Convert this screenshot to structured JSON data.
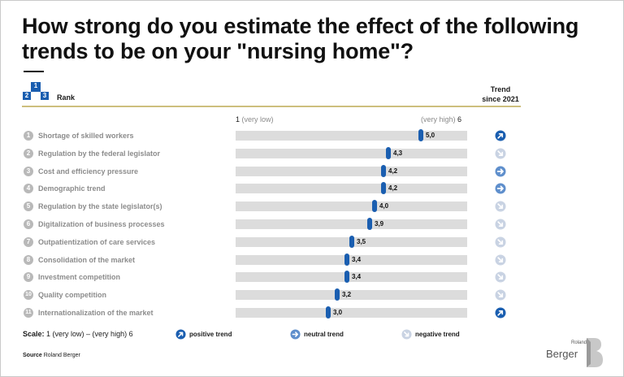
{
  "title": "How strong do you estimate the effect of the following trends to be on your \"nursing home\"?",
  "header": {
    "podium": [
      "1",
      "2",
      "3"
    ],
    "rank_label": "Rank",
    "trend_label_line1": "Trend",
    "trend_label_line2": "since 2021"
  },
  "axis": {
    "low_num": "1",
    "low_text": "(very low)",
    "high_text": "(very high)",
    "high_num": "6"
  },
  "chart_data": {
    "type": "dot-scale",
    "title": "How strong do you estimate the effect of the following trends to be on your \"nursing home\"?",
    "xlim": [
      1,
      6
    ],
    "categories": [
      "Shortage of skilled workers",
      "Regulation by the federal legislator",
      "Cost and efficiency pressure",
      "Demographic trend",
      "Regulation by the state legislator(s)",
      "Digitalization of business processes",
      "Outpatientization of care services",
      "Consolidation of the market",
      "Investment competition",
      "Quality competition",
      "Internationalization of the market"
    ],
    "ranks": [
      "1",
      "2",
      "3",
      "4",
      "5",
      "6",
      "7",
      "8",
      "9",
      "10",
      "11"
    ],
    "values": [
      5.0,
      4.3,
      4.2,
      4.2,
      4.0,
      3.9,
      3.5,
      3.4,
      3.4,
      3.2,
      3.0
    ],
    "value_labels": [
      "5,0",
      "4,3",
      "4,2",
      "4,2",
      "4,0",
      "3,9",
      "3,5",
      "3,4",
      "3,4",
      "3,2",
      "3,0"
    ],
    "trends": [
      "positive",
      "negative",
      "neutral",
      "neutral",
      "negative",
      "negative",
      "negative",
      "negative",
      "negative",
      "negative",
      "positive"
    ]
  },
  "legend": {
    "scale_label": "Scale:",
    "scale_text": "1 (very low) – (very high) 6",
    "positive": "positive trend",
    "neutral": "neutral trend",
    "negative": "negative trend"
  },
  "source": {
    "label": "Source",
    "text": "Roland Berger"
  },
  "logo": {
    "line1": "Roland",
    "line2": "Berger"
  },
  "colors": {
    "accent": "#1a5eb0",
    "track": "#dcdcdc",
    "rule": "#cdbf7e",
    "negative_icon": "#c9d3e3"
  }
}
